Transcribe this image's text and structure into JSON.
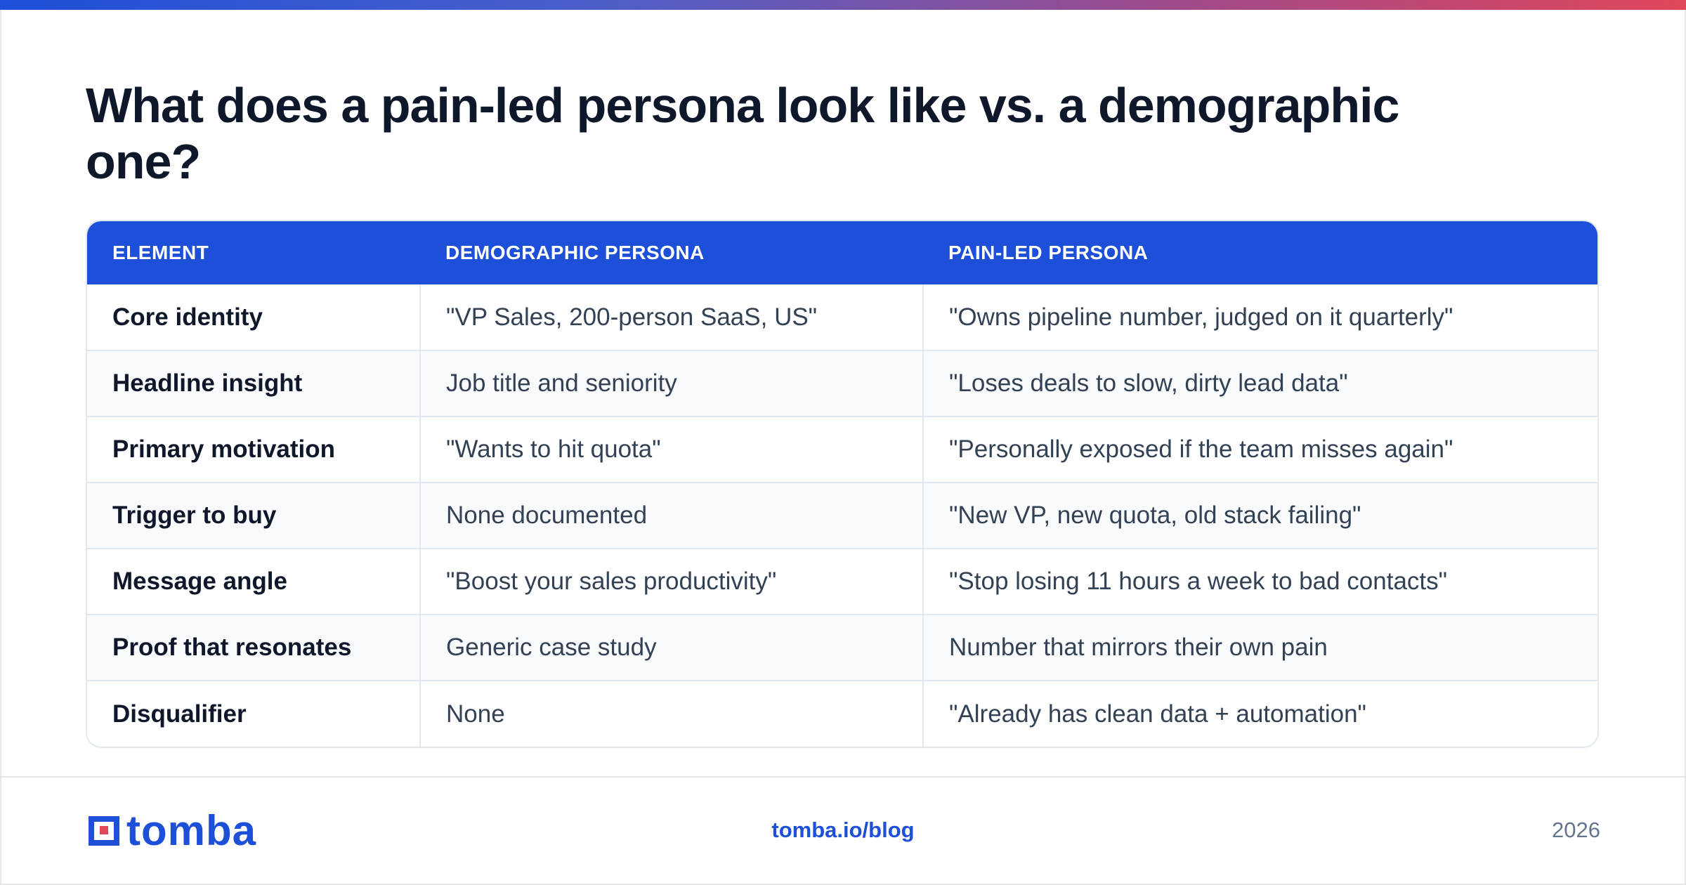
{
  "title": "What does a pain-led persona look like vs. a demographic one?",
  "table": {
    "headers": [
      "ELEMENT",
      "DEMOGRAPHIC PERSONA",
      "PAIN-LED PERSONA"
    ],
    "rows": [
      [
        "Core identity",
        "\"VP Sales, 200-person SaaS, US\"",
        "\"Owns pipeline number, judged on it quarterly\""
      ],
      [
        "Headline insight",
        "Job title and seniority",
        "\"Loses deals to slow, dirty lead data\""
      ],
      [
        "Primary motivation",
        "\"Wants to hit quota\"",
        "\"Personally exposed if the team misses again\""
      ],
      [
        "Trigger to buy",
        "None documented",
        "\"New VP, new quota, old stack failing\""
      ],
      [
        "Message angle",
        "\"Boost your sales productivity\"",
        "\"Stop losing 11 hours a week to bad contacts\""
      ],
      [
        "Proof that resonates",
        "Generic case study",
        "Number that mirrors their own pain"
      ],
      [
        "Disqualifier",
        "None",
        "\"Already has clean data + automation\""
      ]
    ]
  },
  "footer": {
    "logo_text": "tomba",
    "link": "tomba.io/blog",
    "year": "2026"
  },
  "colors": {
    "accent": "#1d4fd8",
    "gradient_end": "#e0475a",
    "title": "#0f172a",
    "muted": "#64748b"
  }
}
